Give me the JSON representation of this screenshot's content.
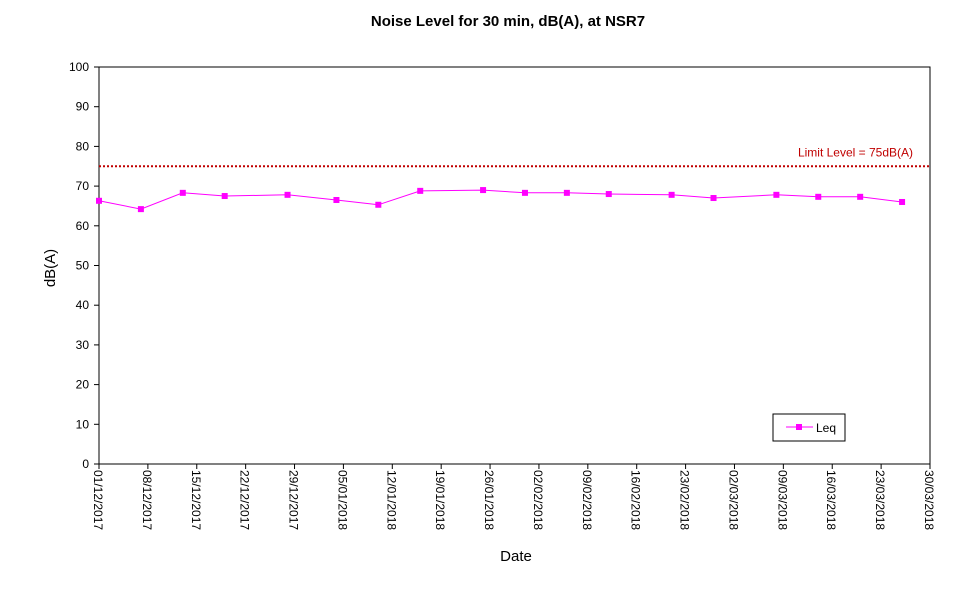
{
  "chart_data": {
    "type": "line",
    "title": "Noise Level for 30 min, dB(A), at NSR7",
    "xlabel": "Date",
    "ylabel": "dB(A)",
    "ylim": [
      0,
      100
    ],
    "yticks": [
      "0",
      "10",
      "20",
      "30",
      "40",
      "50",
      "60",
      "70",
      "80",
      "90",
      "100"
    ],
    "xlim": [
      "2017-12-01",
      "2018-03-30"
    ],
    "xticks": [
      "01/12/2017",
      "08/12/2017",
      "15/12/2017",
      "22/12/2017",
      "29/12/2017",
      "05/01/2018",
      "12/01/2018",
      "19/01/2018",
      "26/01/2018",
      "02/02/2018",
      "09/02/2018",
      "16/02/2018",
      "23/02/2018",
      "02/03/2018",
      "09/03/2018",
      "16/03/2018",
      "23/03/2018",
      "30/03/2018"
    ],
    "grid": false,
    "legend_position": "bottom-right",
    "series": [
      {
        "name": "Leq",
        "color": "#ff00ff",
        "marker": "square",
        "x": [
          "2017-12-01",
          "2017-12-07",
          "2017-12-13",
          "2017-12-19",
          "2017-12-28",
          "2018-01-04",
          "2018-01-10",
          "2018-01-16",
          "2018-01-25",
          "2018-01-31",
          "2018-02-06",
          "2018-02-12",
          "2018-02-21",
          "2018-02-27",
          "2018-03-08",
          "2018-03-14",
          "2018-03-20",
          "2018-03-26"
        ],
        "y": [
          66.3,
          64.2,
          68.3,
          67.5,
          67.8,
          66.5,
          65.3,
          68.8,
          69.0,
          68.3,
          68.3,
          68.0,
          67.8,
          67.0,
          67.8,
          67.3,
          67.3,
          66.0
        ]
      }
    ],
    "limit_line": {
      "value": 75,
      "label": "Limit Level = 75dB(A)",
      "color": "#c00000"
    }
  }
}
